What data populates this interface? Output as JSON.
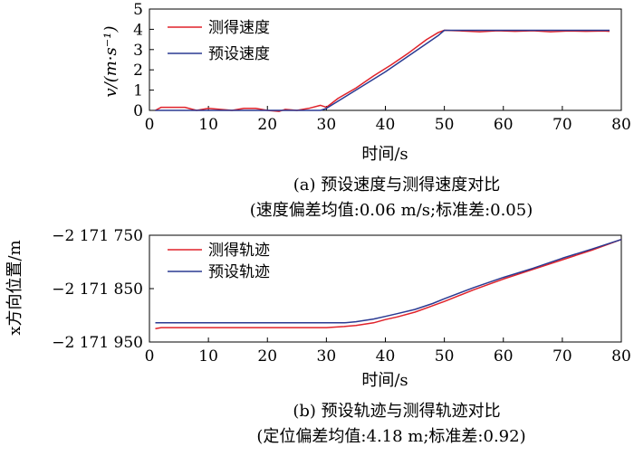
{
  "chart_data": [
    {
      "type": "line",
      "xlabel": "时间/s",
      "ylabel": "v/(m·s⁻¹)",
      "xlim": [
        0,
        80
      ],
      "ylim": [
        0,
        5
      ],
      "xticks": [
        "0",
        "10",
        "20",
        "30",
        "40",
        "50",
        "60",
        "70",
        "80"
      ],
      "yticks": [
        "0",
        "1",
        "2",
        "3",
        "4",
        "5"
      ],
      "caption": "(a) 预设速度与测得速度对比",
      "caption2": "(速度偏差均值:0.06 m/s;标准差:0.05)",
      "legend_position": "top-left",
      "series": [
        {
          "name": "测得速度",
          "color": "#e0222a",
          "x": [
            1,
            2,
            4,
            6,
            8,
            10,
            12,
            14,
            16,
            18,
            20,
            22,
            23,
            25,
            27,
            29,
            30,
            32,
            35,
            38,
            41,
            44,
            47,
            49,
            50,
            53,
            56,
            59,
            62,
            65,
            68,
            71,
            74,
            77,
            78
          ],
          "y": [
            0,
            0.15,
            0.15,
            0.15,
            0.0,
            0.1,
            0.05,
            0.0,
            0.1,
            0.1,
            0.0,
            -0.05,
            0.05,
            0.0,
            0.1,
            0.25,
            0.15,
            0.6,
            1.1,
            1.7,
            2.25,
            2.85,
            3.5,
            3.85,
            3.95,
            3.92,
            3.88,
            3.93,
            3.9,
            3.93,
            3.88,
            3.92,
            3.9,
            3.92,
            3.9
          ],
          "marker": "none"
        },
        {
          "name": "预设速度",
          "color": "#2a3a92",
          "x": [
            1,
            10,
            20,
            29,
            30,
            35,
            40,
            45,
            49,
            50,
            55,
            60,
            65,
            70,
            75,
            78
          ],
          "y": [
            0,
            0,
            0,
            0,
            0.1,
            1.0,
            1.9,
            2.9,
            3.7,
            3.95,
            3.95,
            3.95,
            3.95,
            3.95,
            3.95,
            3.95
          ],
          "marker": "none"
        }
      ]
    },
    {
      "type": "line",
      "xlabel": "时间/s",
      "ylabel": "x方向位置/m",
      "xlim": [
        0,
        80
      ],
      "ylim": [
        -2171950,
        -2171750
      ],
      "xticks": [
        "0",
        "10",
        "20",
        "30",
        "40",
        "50",
        "60",
        "70",
        "80"
      ],
      "yticks": [
        "−2 171 750",
        "−2 171 850",
        "−2 171 950"
      ],
      "ytick_values": [
        -2171750,
        -2171850,
        -2171950
      ],
      "caption": "(b) 预设轨迹与测得轨迹对比",
      "caption2": "(定位偏差均值:4.18 m;标准差:0.92)",
      "legend_position": "top-left",
      "series": [
        {
          "name": "测得轨迹",
          "color": "#e0222a",
          "x": [
            1,
            2,
            10,
            20,
            30,
            33,
            35,
            38,
            40,
            42,
            45,
            48,
            50,
            55,
            60,
            65,
            70,
            75,
            80
          ],
          "y": [
            -2171925,
            -2171923,
            -2171923,
            -2171923,
            -2171923,
            -2171921,
            -2171919,
            -2171914,
            -2171908,
            -2171903,
            -2171894,
            -2171882,
            -2171874,
            -2171852,
            -2171832,
            -2171814,
            -2171796,
            -2171778,
            -2171758
          ],
          "marker": "none"
        },
        {
          "name": "预设轨迹",
          "color": "#2a3a92",
          "x": [
            1,
            10,
            20,
            30,
            33,
            35,
            38,
            40,
            42,
            45,
            48,
            50,
            55,
            60,
            65,
            70,
            75,
            80
          ],
          "y": [
            -2171914,
            -2171914,
            -2171914,
            -2171914,
            -2171914,
            -2171912,
            -2171907,
            -2171902,
            -2171897,
            -2171889,
            -2171878,
            -2171869,
            -2171848,
            -2171829,
            -2171812,
            -2171793,
            -2171776,
            -2171758
          ],
          "marker": "none"
        }
      ]
    }
  ]
}
